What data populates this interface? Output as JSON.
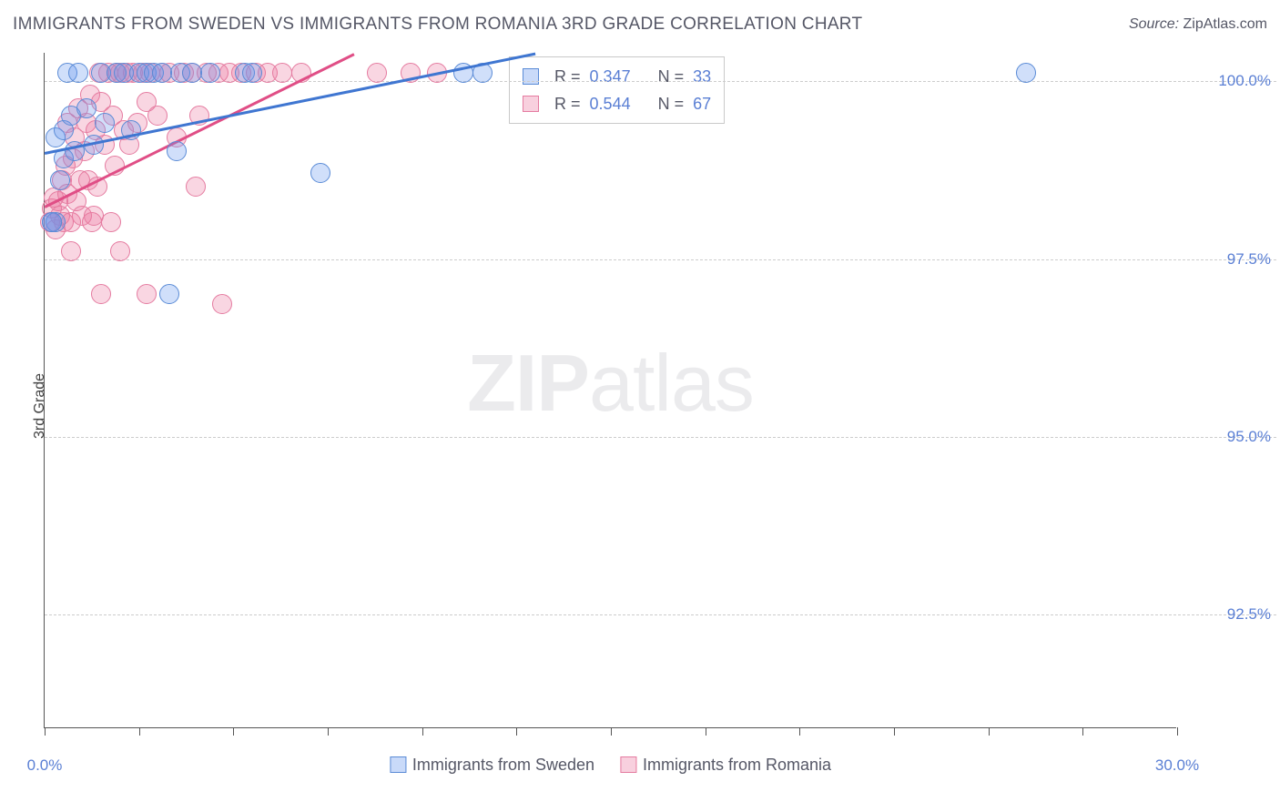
{
  "title": "IMMIGRANTS FROM SWEDEN VS IMMIGRANTS FROM ROMANIA 3RD GRADE CORRELATION CHART",
  "source_prefix": "Source: ",
  "source_name": "ZipAtlas.com",
  "y_axis_label": "3rd Grade",
  "watermark_zip": "ZIP",
  "watermark_atlas": "atlas",
  "chart": {
    "type": "scatter-with-regression",
    "xlim": [
      0,
      30
    ],
    "ylim": [
      90.9,
      100.4
    ],
    "y_ticks": [
      92.5,
      95.0,
      97.5,
      100.0
    ],
    "y_tick_labels": [
      "92.5%",
      "95.0%",
      "97.5%",
      "100.0%"
    ],
    "x_ticks": [
      0,
      2.5,
      5.0,
      7.5,
      10.0,
      12.5,
      15.0,
      17.5,
      20.0,
      22.5,
      25.0,
      27.5,
      30.0
    ],
    "x_tick_labels_shown": {
      "0": "0.0%",
      "30": "30.0%"
    },
    "background_color": "#ffffff",
    "grid_color": "#cccccc",
    "axis_color": "#555555",
    "tick_label_color": "#5a7fd4",
    "series": {
      "sweden": {
        "label": "Immigrants from Sweden",
        "marker_fill": "rgba(100,149,237,0.30)",
        "marker_stroke": "#5a8bd6",
        "line_color": "#3f76d1",
        "marker_radius": 11,
        "R": "0.347",
        "N": "33",
        "reg_line": {
          "x1": 0,
          "y1": 99.0,
          "x2": 13.0,
          "y2": 100.4
        },
        "points": [
          [
            0.2,
            98.0
          ],
          [
            0.3,
            98.0
          ],
          [
            0.3,
            99.2
          ],
          [
            0.4,
            98.6
          ],
          [
            0.5,
            99.3
          ],
          [
            0.5,
            98.9
          ],
          [
            0.6,
            100.1
          ],
          [
            0.7,
            99.5
          ],
          [
            0.8,
            99.0
          ],
          [
            0.9,
            100.1
          ],
          [
            1.1,
            99.6
          ],
          [
            1.3,
            99.1
          ],
          [
            1.5,
            100.1
          ],
          [
            1.6,
            99.4
          ],
          [
            1.9,
            100.1
          ],
          [
            2.1,
            100.1
          ],
          [
            2.3,
            99.3
          ],
          [
            2.5,
            100.1
          ],
          [
            2.7,
            100.1
          ],
          [
            2.9,
            100.1
          ],
          [
            3.1,
            100.1
          ],
          [
            3.5,
            99.0
          ],
          [
            3.6,
            100.1
          ],
          [
            3.9,
            100.1
          ],
          [
            3.3,
            97.0
          ],
          [
            4.4,
            100.1
          ],
          [
            5.3,
            100.1
          ],
          [
            5.5,
            100.1
          ],
          [
            7.3,
            98.7
          ],
          [
            11.1,
            100.1
          ],
          [
            11.6,
            100.1
          ],
          [
            26.0,
            100.1
          ],
          [
            0.2,
            98.0
          ]
        ]
      },
      "romania": {
        "label": "Immigrants from Romania",
        "marker_fill": "rgba(236,120,160,0.30)",
        "marker_stroke": "#e57ba0",
        "line_color": "#e04e86",
        "marker_radius": 11,
        "R": "0.544",
        "N": "67",
        "reg_line": {
          "x1": 0,
          "y1": 98.25,
          "x2": 8.2,
          "y2": 100.4
        },
        "points": [
          [
            0.15,
            98.0
          ],
          [
            0.2,
            98.2
          ],
          [
            0.25,
            98.35
          ],
          [
            0.3,
            97.9
          ],
          [
            0.35,
            98.3
          ],
          [
            0.4,
            98.1
          ],
          [
            0.45,
            98.6
          ],
          [
            0.5,
            98.0
          ],
          [
            0.55,
            98.8
          ],
          [
            0.6,
            98.4
          ],
          [
            0.6,
            99.4
          ],
          [
            0.7,
            98.0
          ],
          [
            0.75,
            98.9
          ],
          [
            0.8,
            99.2
          ],
          [
            0.85,
            98.3
          ],
          [
            0.9,
            99.6
          ],
          [
            0.95,
            98.6
          ],
          [
            1.0,
            98.1
          ],
          [
            1.05,
            99.0
          ],
          [
            1.1,
            99.4
          ],
          [
            1.15,
            98.6
          ],
          [
            1.2,
            99.8
          ],
          [
            1.25,
            98.0
          ],
          [
            1.3,
            98.1
          ],
          [
            1.35,
            99.3
          ],
          [
            1.4,
            98.5
          ],
          [
            1.45,
            100.1
          ],
          [
            1.5,
            99.7
          ],
          [
            1.6,
            99.1
          ],
          [
            1.7,
            100.1
          ],
          [
            1.75,
            98.0
          ],
          [
            1.8,
            99.5
          ],
          [
            1.85,
            98.8
          ],
          [
            1.9,
            100.1
          ],
          [
            2.0,
            100.1
          ],
          [
            0.7,
            97.6
          ],
          [
            2.1,
            99.3
          ],
          [
            2.2,
            100.1
          ],
          [
            2.25,
            99.1
          ],
          [
            2.35,
            100.1
          ],
          [
            2.45,
            99.4
          ],
          [
            2.6,
            100.1
          ],
          [
            2.0,
            97.6
          ],
          [
            2.7,
            99.7
          ],
          [
            2.8,
            100.1
          ],
          [
            3.0,
            99.5
          ],
          [
            3.1,
            100.1
          ],
          [
            3.3,
            100.1
          ],
          [
            3.5,
            99.2
          ],
          [
            3.7,
            100.1
          ],
          [
            3.9,
            100.1
          ],
          [
            2.7,
            97.0
          ],
          [
            4.1,
            99.5
          ],
          [
            4.3,
            100.1
          ],
          [
            4.6,
            100.1
          ],
          [
            4.0,
            98.5
          ],
          [
            4.9,
            100.1
          ],
          [
            5.2,
            100.1
          ],
          [
            5.6,
            100.1
          ],
          [
            4.7,
            96.85
          ],
          [
            5.9,
            100.1
          ],
          [
            6.3,
            100.1
          ],
          [
            1.5,
            97.0
          ],
          [
            6.8,
            100.1
          ],
          [
            8.8,
            100.1
          ],
          [
            9.7,
            100.1
          ],
          [
            10.4,
            100.1
          ]
        ]
      }
    },
    "legend_swatch_sweden": {
      "fill": "rgba(100,149,237,0.35)",
      "stroke": "#5a8bd6"
    },
    "legend_swatch_romania": {
      "fill": "rgba(236,120,160,0.35)",
      "stroke": "#e57ba0"
    }
  },
  "corr_box_text": {
    "r_label": "R =",
    "n_label": "N ="
  }
}
